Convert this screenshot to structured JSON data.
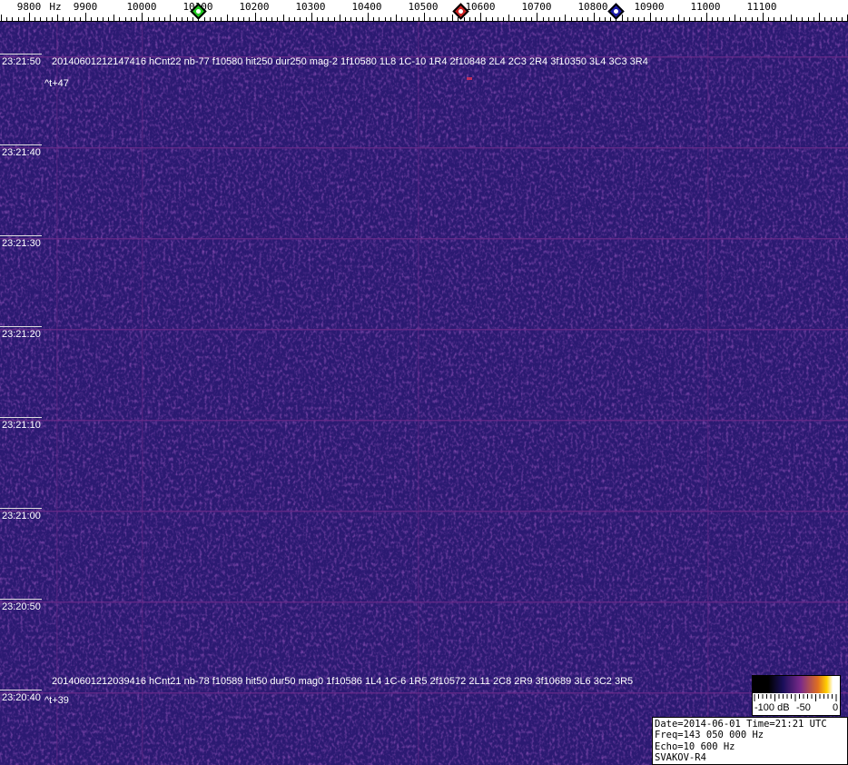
{
  "frequency_axis": {
    "unit": "Hz",
    "labels": [
      "9800",
      "9900",
      "10000",
      "10100",
      "10200",
      "10300",
      "10400",
      "10500",
      "10600",
      "10700",
      "10800",
      "10900",
      "11000",
      "11100"
    ],
    "markers": [
      {
        "name": "green-marker",
        "freq": 10100,
        "color": "#22cc22"
      },
      {
        "name": "red-marker",
        "freq": 10565,
        "color": "#cc2222"
      },
      {
        "name": "blue-marker",
        "freq": 10840,
        "color": "#1a1aaa"
      }
    ]
  },
  "time_labels": [
    "23:21:50",
    "23:21:40",
    "23:21:30",
    "23:21:20",
    "23:21:10",
    "23:21:00",
    "23:20:50",
    "23:20:40"
  ],
  "events": [
    {
      "text": "20140601212147416 hCnt22 nb-77 f10580 hit250 dur250 mag-2 1f10580 1L8 1C-10 1R4 2f10848 2L4 2C3 2R4 3f10350 3L4 3C3 3R4",
      "offset": "^t+47"
    },
    {
      "text": "20140601212039416 hCnt21 nb-78 f10589 hit50 dur50 mag0 1f10586 1L4 1C-6 1R5 2f10572 2L11 2C8 2R9 3f10689 3L6 3C2 3R5",
      "offset": "^t+39"
    }
  ],
  "colorbar": {
    "labels": [
      "-100 dB",
      "-50",
      "0"
    ]
  },
  "status": {
    "line1": "Date=2014-06-01 Time=21:21 UTC",
    "line2": "Freq=143 050 000 Hz",
    "line3": "Echo=10 600 Hz",
    "line4": "SVAKOV-R4"
  },
  "colors": {
    "background": "#2b1a72",
    "gridline": "#6a2a8a"
  }
}
